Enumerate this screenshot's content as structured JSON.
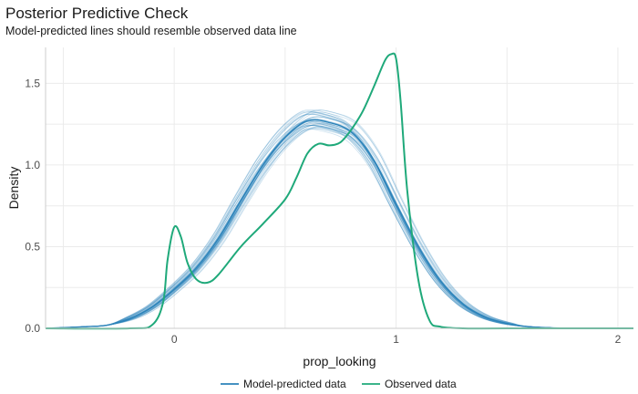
{
  "title": "Posterior Predictive Check",
  "subtitle": "Model-predicted lines should resemble observed data line",
  "colors": {
    "model": "#2b83ba",
    "observed": "#1fa97a",
    "grid": "#ebebeb",
    "axis": "#cccccc"
  },
  "chart_data": {
    "type": "line",
    "title": "Posterior Predictive Check",
    "subtitle": "Model-predicted lines should resemble observed data line",
    "xlabel": "prop_looking",
    "ylabel": "Density",
    "xlim": [
      -0.58,
      2.07
    ],
    "ylim": [
      0,
      1.72
    ],
    "x_ticks": [
      0,
      1,
      2
    ],
    "x_tick_labels": [
      "0",
      "1",
      "2"
    ],
    "y_ticks": [
      0,
      0.5,
      1.0,
      1.5
    ],
    "y_tick_labels": [
      "0.0",
      "0.5",
      "1.0",
      "1.5"
    ],
    "grid": true,
    "legend": {
      "position": "bottom",
      "entries": [
        "Model-predicted data",
        "Observed data"
      ]
    },
    "series": [
      {
        "name": "Model-predicted data",
        "kind": "replicates",
        "x": [
          -0.58,
          -0.4,
          -0.3,
          -0.2,
          -0.1,
          0,
          0.1,
          0.2,
          0.3,
          0.4,
          0.5,
          0.6,
          0.7,
          0.8,
          0.9,
          1.0,
          1.1,
          1.2,
          1.3,
          1.4,
          1.5,
          1.6,
          1.8,
          2.07
        ],
        "y": [
          0,
          0.01,
          0.02,
          0.06,
          0.13,
          0.24,
          0.37,
          0.55,
          0.78,
          1.0,
          1.17,
          1.27,
          1.26,
          1.2,
          1.03,
          0.76,
          0.5,
          0.29,
          0.15,
          0.07,
          0.03,
          0.01,
          0,
          0
        ]
      },
      {
        "name": "Observed data",
        "kind": "observed",
        "x": [
          -0.58,
          -0.2,
          -0.1,
          -0.05,
          -0.03,
          0,
          0.03,
          0.06,
          0.1,
          0.15,
          0.2,
          0.3,
          0.4,
          0.5,
          0.55,
          0.6,
          0.65,
          0.7,
          0.75,
          0.8,
          0.85,
          0.9,
          0.95,
          0.98,
          1.0,
          1.02,
          1.05,
          1.1,
          1.15,
          1.2,
          1.3,
          1.5,
          2.07
        ],
        "y": [
          0,
          0,
          0.02,
          0.16,
          0.42,
          0.62,
          0.56,
          0.4,
          0.3,
          0.28,
          0.33,
          0.5,
          0.64,
          0.79,
          0.92,
          1.07,
          1.13,
          1.12,
          1.14,
          1.22,
          1.33,
          1.48,
          1.64,
          1.68,
          1.65,
          1.4,
          0.85,
          0.3,
          0.05,
          0.01,
          0,
          0,
          0
        ]
      }
    ],
    "replicate_count": 40
  }
}
